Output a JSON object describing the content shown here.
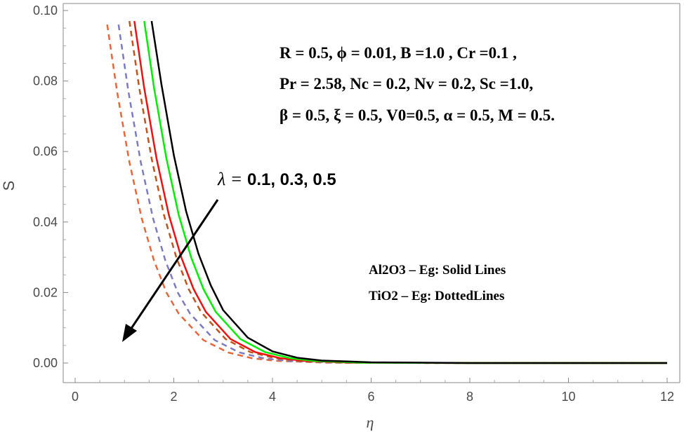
{
  "chart_data": {
    "type": "line",
    "xlabel": "η",
    "ylabel": "S",
    "xlim": [
      0,
      12
    ],
    "ylim": [
      0,
      0.1
    ],
    "xticks": [
      "0",
      "2",
      "4",
      "6",
      "8",
      "10",
      "12"
    ],
    "yticks": [
      "0.00",
      "0.02",
      "0.04",
      "0.06",
      "0.08",
      "0.10"
    ],
    "grid": false,
    "series": [
      {
        "color": "#000000",
        "style": "solid",
        "x": [
          1.55,
          1.75,
          2.0,
          2.25,
          2.5,
          2.75,
          3.0,
          3.5,
          4.0,
          4.5,
          5.0,
          6.0,
          8.0,
          12.0
        ],
        "y": [
          0.097,
          0.079,
          0.059,
          0.043,
          0.031,
          0.022,
          0.015,
          0.0072,
          0.0033,
          0.0015,
          0.0007,
          0.0002,
          0.0,
          0.0
        ]
      },
      {
        "color": "#00ee00",
        "style": "solid",
        "x": [
          1.4,
          1.6,
          1.85,
          2.1,
          2.35,
          2.6,
          2.85,
          3.35,
          3.85,
          4.35,
          4.85,
          5.8,
          8.0,
          12.0
        ],
        "y": [
          0.097,
          0.078,
          0.058,
          0.042,
          0.03,
          0.021,
          0.0145,
          0.0068,
          0.0031,
          0.0014,
          0.0006,
          0.0001,
          0.0,
          0.0
        ]
      },
      {
        "color": "#ee1111",
        "style": "solid",
        "x": [
          1.2,
          1.4,
          1.65,
          1.9,
          2.15,
          2.4,
          2.65,
          3.15,
          3.65,
          4.15,
          4.65,
          5.6,
          8.0,
          12.0
        ],
        "y": [
          0.097,
          0.078,
          0.058,
          0.042,
          0.03,
          0.021,
          0.0145,
          0.0068,
          0.0031,
          0.0014,
          0.0006,
          0.0001,
          0.0,
          0.0
        ]
      },
      {
        "color": "#c0541a",
        "style": "dashed",
        "x": [
          1.1,
          1.3,
          1.55,
          1.8,
          2.05,
          2.3,
          2.55,
          3.05,
          3.55,
          4.05,
          4.55,
          5.5,
          8.0,
          12.0
        ],
        "y": [
          0.097,
          0.078,
          0.058,
          0.042,
          0.03,
          0.021,
          0.0145,
          0.0068,
          0.0031,
          0.0014,
          0.0006,
          0.0001,
          0.0,
          0.0
        ]
      },
      {
        "color": "#7b7bc4",
        "style": "dashed",
        "x": [
          0.88,
          1.08,
          1.33,
          1.58,
          1.83,
          2.08,
          2.33,
          2.83,
          3.33,
          3.83,
          4.33,
          5.3,
          8.0,
          12.0
        ],
        "y": [
          0.096,
          0.077,
          0.057,
          0.041,
          0.029,
          0.02,
          0.014,
          0.0065,
          0.003,
          0.0013,
          0.0006,
          0.0001,
          0.0,
          0.0
        ]
      },
      {
        "color": "#e8663a",
        "style": "dashed",
        "x": [
          0.65,
          0.85,
          1.1,
          1.35,
          1.6,
          1.85,
          2.1,
          2.6,
          3.1,
          3.6,
          4.1,
          5.1,
          8.0,
          12.0
        ],
        "y": [
          0.096,
          0.077,
          0.057,
          0.041,
          0.029,
          0.02,
          0.014,
          0.0065,
          0.003,
          0.0013,
          0.0006,
          0.0001,
          0.0,
          0.0
        ]
      }
    ],
    "annotations": {
      "params_line1": "R = 0.5, ϕ = 0.01, B =1.0 , Cr =0.1 ,",
      "params_line2": "Pr = 2.58, Nc = 0.2, Nv = 0.2, Sc =1.0,",
      "params_line3": "β = 0.5, ξ = 0.5,  V0=0.5, α = 0.5, M = 0.5.",
      "lambda_symbol": "λ =",
      "lambda_values": " 0.1, 0.3, 0.5",
      "legend_line1": "Al2O3 – Eg: Solid Lines",
      "legend_line2": "TiO2 – Eg: DottedLines"
    }
  }
}
